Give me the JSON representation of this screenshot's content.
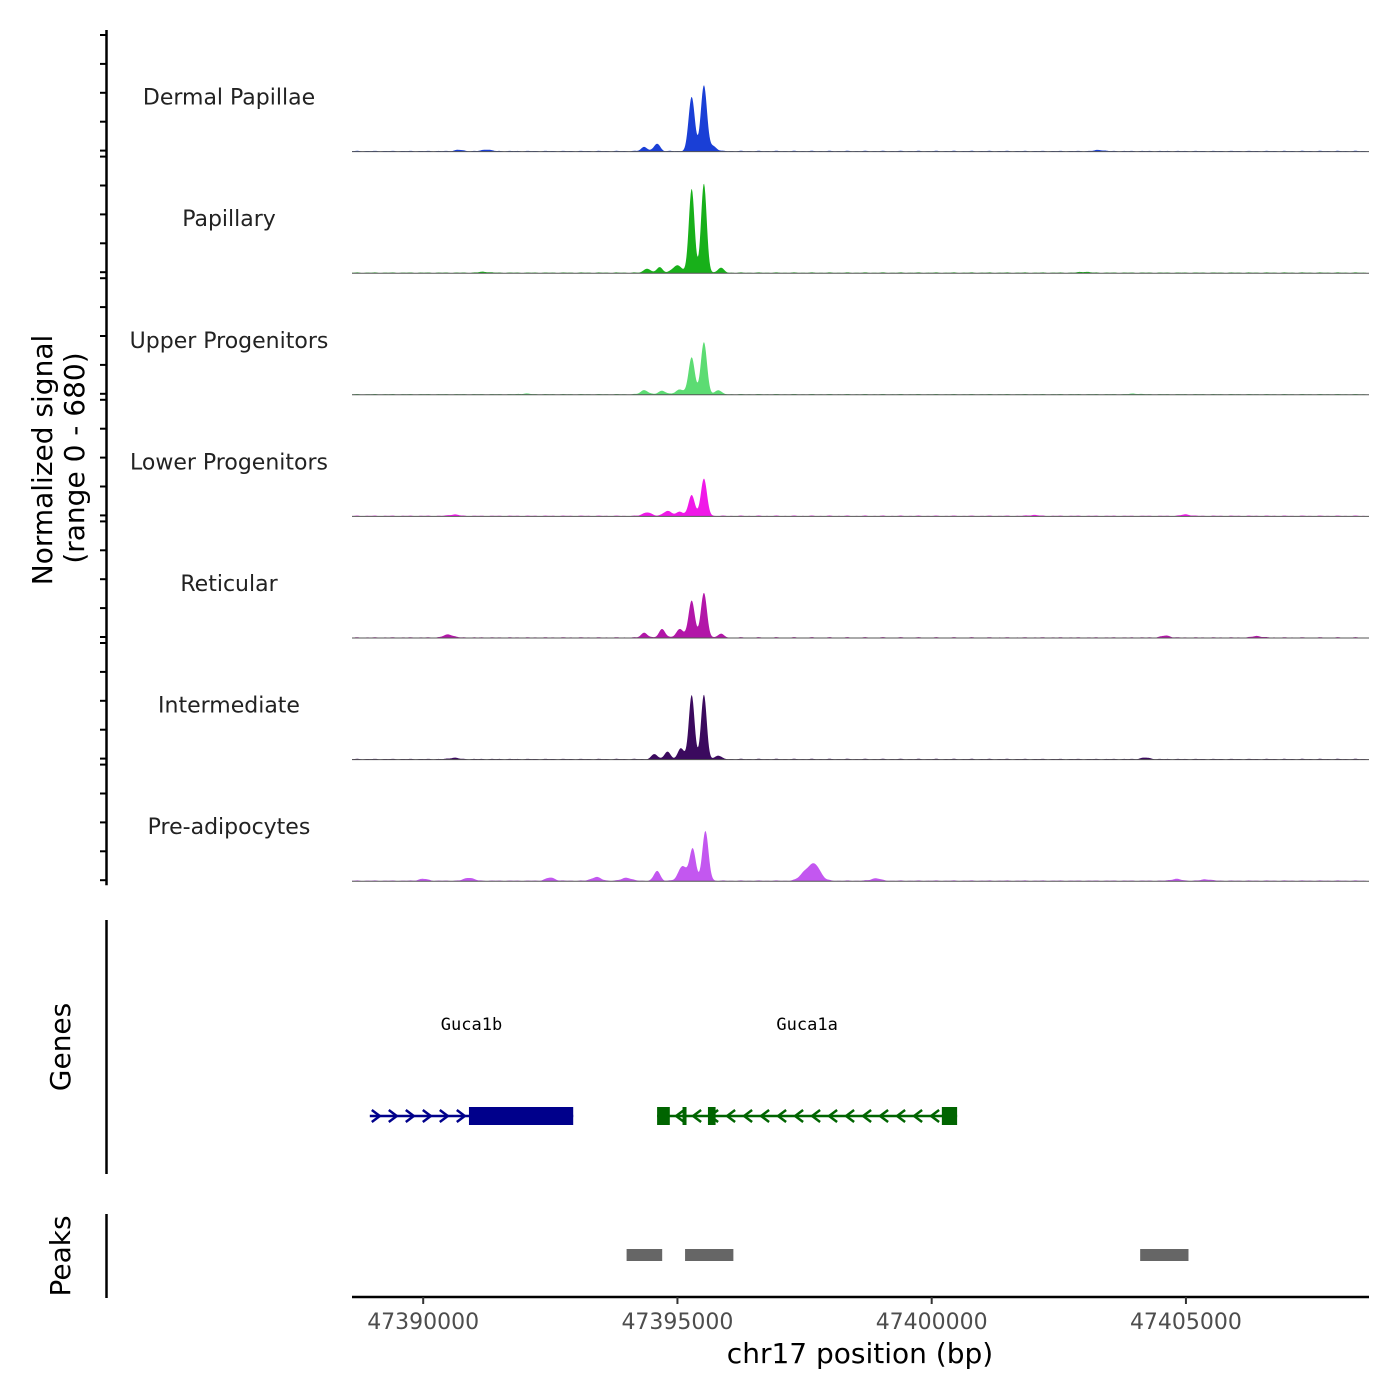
{
  "chart_data": {
    "type": "area",
    "title": "",
    "xlabel": "chr17 position (bp)",
    "ylabel": "Normalized signal",
    "ylabel_range": "(range 0 - 680)",
    "ylim": [
      0,
      680
    ],
    "xlim": [
      47388600,
      47408600
    ],
    "x_ticks": [
      47390000,
      47395000,
      47400000,
      47405000
    ],
    "x_tick_labels": [
      "47390000",
      "47395000",
      "47400000",
      "47405000"
    ],
    "series": [
      {
        "name": "Dermal Papillae",
        "color": "#1a3fd6",
        "peaks": [
          [
            47395280,
            440,
            60
          ],
          [
            47395520,
            530,
            60
          ],
          [
            47394600,
            60,
            60
          ],
          [
            47394350,
            35,
            60
          ],
          [
            47395700,
            40,
            70
          ],
          [
            47390700,
            10,
            80
          ],
          [
            47391250,
            14,
            80
          ],
          [
            47403300,
            10,
            80
          ]
        ]
      },
      {
        "name": "Papillary",
        "color": "#18b01a",
        "peaks": [
          [
            47395280,
            680,
            55
          ],
          [
            47395520,
            720,
            55
          ],
          [
            47394650,
            45,
            60
          ],
          [
            47394400,
            35,
            60
          ],
          [
            47395000,
            60,
            90
          ],
          [
            47395850,
            40,
            60
          ],
          [
            47391200,
            8,
            90
          ],
          [
            47403000,
            8,
            90
          ]
        ]
      },
      {
        "name": "Upper Progenitors",
        "color": "#5cdc73",
        "peaks": [
          [
            47395280,
            300,
            60
          ],
          [
            47395520,
            420,
            60
          ],
          [
            47394350,
            35,
            70
          ],
          [
            47394700,
            30,
            70
          ],
          [
            47395050,
            40,
            80
          ],
          [
            47395800,
            35,
            60
          ],
          [
            47392000,
            6,
            90
          ],
          [
            47404000,
            6,
            90
          ]
        ]
      },
      {
        "name": "Lower Progenitors",
        "color": "#f019e8",
        "peaks": [
          [
            47395280,
            170,
            60
          ],
          [
            47395520,
            300,
            60
          ],
          [
            47394400,
            30,
            80
          ],
          [
            47394800,
            40,
            80
          ],
          [
            47395050,
            35,
            70
          ],
          [
            47390600,
            12,
            90
          ],
          [
            47405000,
            12,
            90
          ],
          [
            47402000,
            8,
            90
          ]
        ]
      },
      {
        "name": "Reticular",
        "color": "#b216a8",
        "peaks": [
          [
            47395280,
            300,
            60
          ],
          [
            47395520,
            360,
            60
          ],
          [
            47394700,
            70,
            60
          ],
          [
            47394350,
            40,
            60
          ],
          [
            47395050,
            70,
            70
          ],
          [
            47395850,
            30,
            60
          ],
          [
            47390500,
            25,
            90
          ],
          [
            47404600,
            15,
            90
          ],
          [
            47406400,
            12,
            90
          ]
        ]
      },
      {
        "name": "Intermediate",
        "color": "#3b0a5e",
        "peaks": [
          [
            47395280,
            520,
            55
          ],
          [
            47395520,
            520,
            55
          ],
          [
            47394550,
            40,
            60
          ],
          [
            47394800,
            60,
            60
          ],
          [
            47395070,
            90,
            60
          ],
          [
            47395800,
            30,
            60
          ],
          [
            47390600,
            12,
            80
          ],
          [
            47404200,
            12,
            90
          ]
        ]
      },
      {
        "name": "Pre-adipocytes",
        "color": "#c357f0",
        "peaks": [
          [
            47395300,
            260,
            60
          ],
          [
            47395550,
            400,
            60
          ],
          [
            47394600,
            80,
            60
          ],
          [
            47395100,
            120,
            80
          ],
          [
            47397700,
            130,
            110
          ],
          [
            47397500,
            60,
            100
          ],
          [
            47393400,
            30,
            90
          ],
          [
            47392500,
            25,
            90
          ],
          [
            47390900,
            25,
            90
          ],
          [
            47390000,
            15,
            90
          ],
          [
            47394000,
            25,
            90
          ],
          [
            47398900,
            20,
            90
          ],
          [
            47404800,
            15,
            90
          ],
          [
            47405400,
            12,
            90
          ]
        ]
      }
    ],
    "genes": [
      {
        "name": "Guca1b",
        "start": 47388950,
        "end": 47392950,
        "strand": "+",
        "color": "#00008b",
        "exons": [
          [
            47390900,
            47392950
          ]
        ]
      },
      {
        "name": "Guca1a",
        "start": 47394600,
        "end": 47400500,
        "strand": "-",
        "color": "#006400",
        "exons": [
          [
            47394600,
            47394850
          ],
          [
            47395100,
            47395130
          ],
          [
            47395600,
            47395750
          ],
          [
            47400200,
            47400500
          ]
        ]
      }
    ],
    "peaks": [
      [
        47394000,
        47394700
      ],
      [
        47395150,
        47396100
      ],
      [
        47404100,
        47405050
      ]
    ],
    "track_titles": {
      "genes": "Genes",
      "peaks": "Peaks"
    }
  }
}
